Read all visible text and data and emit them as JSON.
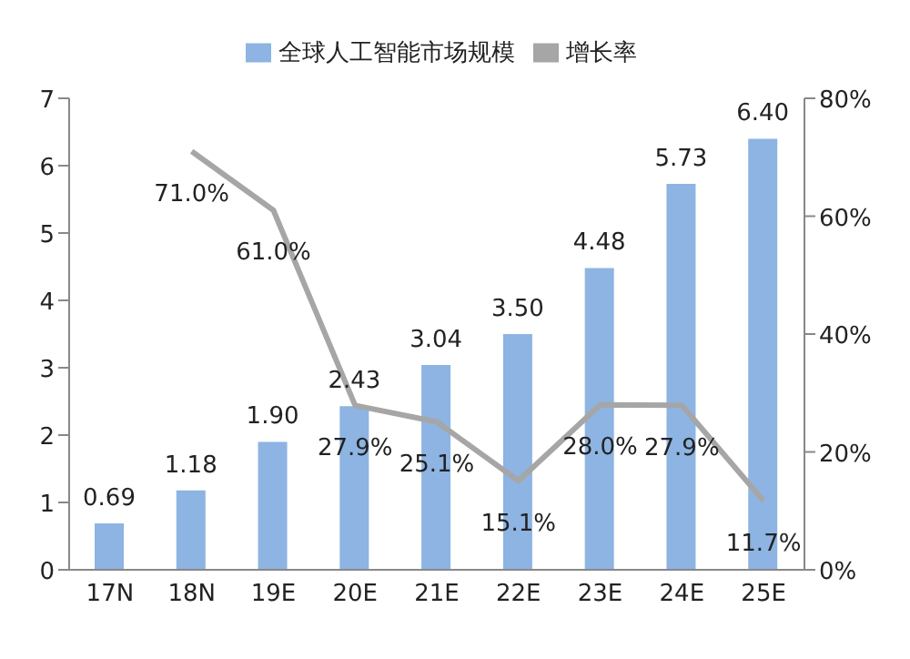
{
  "chart_data": {
    "type": "bar",
    "categories": [
      "17N",
      "18N",
      "19E",
      "20E",
      "21E",
      "22E",
      "23E",
      "24E",
      "25E"
    ],
    "series": [
      {
        "name": "全球人工智能市场规模",
        "color": "#8db4e2",
        "values": [
          0.69,
          1.18,
          1.9,
          2.43,
          3.04,
          3.5,
          4.48,
          5.73,
          6.4
        ],
        "value_labels": [
          "0.69",
          "1.18",
          "1.90",
          "2.43",
          "3.04",
          "3.50",
          "4.48",
          "5.73",
          "6.40"
        ]
      },
      {
        "name": "增长率",
        "type": "line",
        "axis": "y2",
        "color": "#a6a6a6",
        "values": [
          null,
          71.0,
          61.0,
          27.9,
          25.1,
          15.1,
          28.0,
          27.9,
          11.7
        ],
        "value_labels": [
          null,
          "71.0%",
          "61.0%",
          "27.9%",
          "25.1%",
          "15.1%",
          "28.0%",
          "27.9%",
          "11.7%"
        ]
      }
    ],
    "ylim": [
      0,
      7
    ],
    "yticks": [
      0,
      1,
      2,
      3,
      4,
      5,
      6,
      7
    ],
    "y2lim": [
      0,
      80
    ],
    "y2ticks": [
      {
        "value": 0,
        "label": "0%"
      },
      {
        "value": 20,
        "label": "20%"
      },
      {
        "value": 40,
        "label": "40%"
      },
      {
        "value": 60,
        "label": "60%"
      },
      {
        "value": 80,
        "label": "80%"
      }
    ],
    "grid": false,
    "legend": "top",
    "marker": "none"
  }
}
